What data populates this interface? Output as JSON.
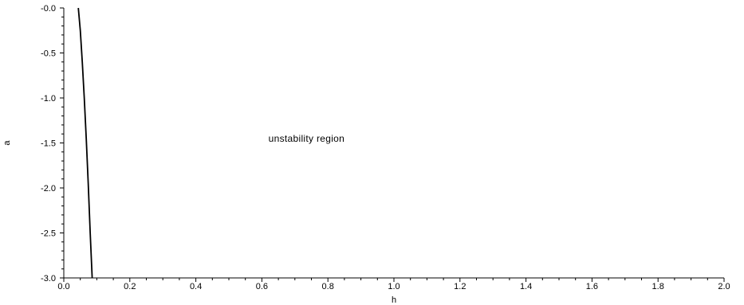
{
  "chart_data": {
    "type": "line",
    "xlabel": "h",
    "ylabel": "a",
    "xlim": [
      0.0,
      2.0
    ],
    "ylim": [
      -3.0,
      0.0
    ],
    "x_ticks": [
      0.0,
      0.2,
      0.4,
      0.6,
      0.8,
      1.0,
      1.2,
      1.4,
      1.6,
      1.8,
      2.0
    ],
    "x_tick_labels": [
      "0.0",
      "0.2",
      "0.4",
      "0.6",
      "0.8",
      "1.0",
      "1.2",
      "1.4",
      "1.6",
      "1.8",
      "2.0"
    ],
    "y_ticks": [
      0.0,
      -0.5,
      -1.0,
      -1.5,
      -2.0,
      -2.5,
      -3.0
    ],
    "y_tick_labels": [
      "-0.0",
      "-0.5",
      "-1.0",
      "-1.5",
      "-2.0",
      "-2.5",
      "-3.0"
    ],
    "grid": false,
    "legend": "none",
    "series": [
      {
        "x": [
          0.044,
          0.05,
          0.056,
          0.062,
          0.068,
          0.074,
          0.08,
          0.086
        ],
        "y": [
          0.0,
          -0.25,
          -0.6,
          -1.0,
          -1.45,
          -1.95,
          -2.5,
          -3.0
        ],
        "color": "#000000"
      }
    ],
    "annotations": [
      {
        "text": "unstability region",
        "x": 0.62,
        "y": -1.45
      }
    ]
  }
}
